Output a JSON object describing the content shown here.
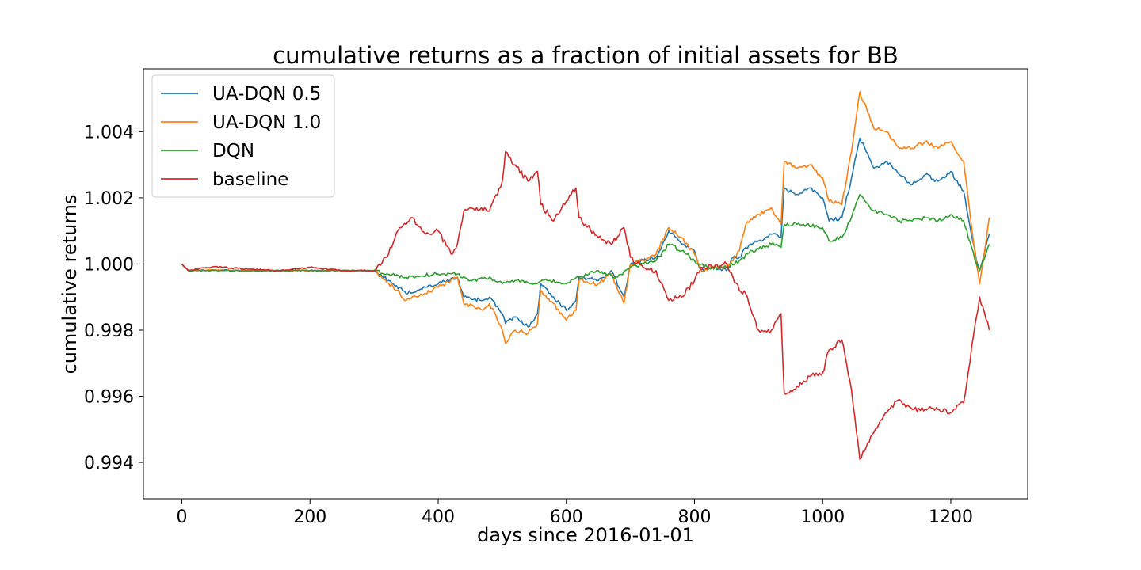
{
  "chart_data": {
    "type": "line",
    "title": "cumulative returns as a fraction of initial assets for BB",
    "xlabel": "days since 2016-01-01",
    "ylabel": "cumulative returns",
    "xlim": [
      -60,
      1320
    ],
    "ylim": [
      0.9929,
      1.0059
    ],
    "xticks": [
      0,
      200,
      400,
      600,
      800,
      1000,
      1200
    ],
    "yticks": [
      0.994,
      0.996,
      0.998,
      1.0,
      1.002,
      1.004
    ],
    "ytick_labels": [
      "0.994",
      "0.996",
      "0.998",
      "1.000",
      "1.002",
      "1.004"
    ],
    "grid": false,
    "legend_position": "upper-left",
    "series": [
      {
        "name": "UA-DQN 0.5",
        "color": "#1f77b4",
        "points": [
          [
            0,
            1.0
          ],
          [
            10,
            0.9998
          ],
          [
            50,
            0.99982
          ],
          [
            100,
            0.9998
          ],
          [
            200,
            0.9998
          ],
          [
            300,
            0.9998
          ],
          [
            330,
            0.9994
          ],
          [
            350,
            0.9991
          ],
          [
            380,
            0.9993
          ],
          [
            400,
            0.9994
          ],
          [
            430,
            0.9996
          ],
          [
            440,
            0.999
          ],
          [
            470,
            0.9989
          ],
          [
            480,
            0.999
          ],
          [
            500,
            0.9985
          ],
          [
            505,
            0.9982
          ],
          [
            520,
            0.9984
          ],
          [
            540,
            0.9981
          ],
          [
            555,
            0.9985
          ],
          [
            560,
            0.9994
          ],
          [
            580,
            0.999
          ],
          [
            600,
            0.9986
          ],
          [
            615,
            0.9989
          ],
          [
            620,
            0.9996
          ],
          [
            650,
            0.9995
          ],
          [
            670,
            0.9998
          ],
          [
            690,
            0.999
          ],
          [
            700,
            1.0
          ],
          [
            720,
            1.0001
          ],
          [
            740,
            1.0002
          ],
          [
            760,
            1.001
          ],
          [
            780,
            1.0006
          ],
          [
            800,
            1.0004
          ],
          [
            810,
            0.9998
          ],
          [
            830,
            0.9999
          ],
          [
            850,
            0.9998
          ],
          [
            860,
            1.0002
          ],
          [
            870,
            1.0002
          ],
          [
            880,
            1.0005
          ],
          [
            900,
            1.0007
          ],
          [
            920,
            1.0009
          ],
          [
            935,
            1.0008
          ],
          [
            940,
            1.0023
          ],
          [
            960,
            1.0021
          ],
          [
            980,
            1.0023
          ],
          [
            1000,
            1.002
          ],
          [
            1010,
            1.0013
          ],
          [
            1030,
            1.0014
          ],
          [
            1045,
            1.0026
          ],
          [
            1058,
            1.0038
          ],
          [
            1080,
            1.0029
          ],
          [
            1100,
            1.0031
          ],
          [
            1120,
            1.0027
          ],
          [
            1140,
            1.0024
          ],
          [
            1160,
            1.0027
          ],
          [
            1180,
            1.0025
          ],
          [
            1200,
            1.0028
          ],
          [
            1220,
            1.0022
          ],
          [
            1240,
            1.0001
          ],
          [
            1245,
            0.9998
          ],
          [
            1260,
            1.0009
          ]
        ]
      },
      {
        "name": "UA-DQN 1.0",
        "color": "#ff7f0e",
        "points": [
          [
            0,
            1.0
          ],
          [
            10,
            0.9998
          ],
          [
            50,
            0.99982
          ],
          [
            100,
            0.9998
          ],
          [
            200,
            0.9998
          ],
          [
            300,
            0.9998
          ],
          [
            330,
            0.9993
          ],
          [
            350,
            0.9989
          ],
          [
            380,
            0.9991
          ],
          [
            400,
            0.9993
          ],
          [
            430,
            0.9996
          ],
          [
            440,
            0.9988
          ],
          [
            470,
            0.9986
          ],
          [
            480,
            0.9988
          ],
          [
            500,
            0.998
          ],
          [
            505,
            0.9976
          ],
          [
            520,
            0.998
          ],
          [
            540,
            0.9979
          ],
          [
            555,
            0.9982
          ],
          [
            560,
            0.9992
          ],
          [
            580,
            0.9988
          ],
          [
            600,
            0.9983
          ],
          [
            615,
            0.9986
          ],
          [
            620,
            0.9995
          ],
          [
            650,
            0.9994
          ],
          [
            670,
            0.9997
          ],
          [
            690,
            0.9988
          ],
          [
            700,
            1.0
          ],
          [
            720,
            1.0001
          ],
          [
            740,
            1.0003
          ],
          [
            760,
            1.0011
          ],
          [
            780,
            1.0008
          ],
          [
            800,
            1.0003
          ],
          [
            810,
            0.9998
          ],
          [
            830,
            0.9999
          ],
          [
            850,
            0.9999
          ],
          [
            860,
            1.0001
          ],
          [
            870,
            1.0004
          ],
          [
            880,
            1.0012
          ],
          [
            900,
            1.0015
          ],
          [
            920,
            1.0017
          ],
          [
            935,
            1.0012
          ],
          [
            940,
            1.0031
          ],
          [
            960,
            1.0029
          ],
          [
            980,
            1.003
          ],
          [
            1000,
            1.0026
          ],
          [
            1010,
            1.0019
          ],
          [
            1030,
            1.0018
          ],
          [
            1045,
            1.0034
          ],
          [
            1058,
            1.0052
          ],
          [
            1080,
            1.0041
          ],
          [
            1100,
            1.004
          ],
          [
            1120,
            1.0035
          ],
          [
            1140,
            1.0035
          ],
          [
            1160,
            1.0037
          ],
          [
            1180,
            1.0035
          ],
          [
            1200,
            1.0037
          ],
          [
            1220,
            1.0031
          ],
          [
            1240,
            1.0
          ],
          [
            1245,
            0.9994
          ],
          [
            1260,
            1.0014
          ]
        ]
      },
      {
        "name": "DQN",
        "color": "#2ca02c",
        "points": [
          [
            0,
            1.0
          ],
          [
            10,
            0.9998
          ],
          [
            100,
            0.9998
          ],
          [
            200,
            0.9998
          ],
          [
            300,
            0.9998
          ],
          [
            320,
            0.9997
          ],
          [
            350,
            0.9996
          ],
          [
            400,
            0.9997
          ],
          [
            430,
            0.9997
          ],
          [
            450,
            0.9995
          ],
          [
            480,
            0.9996
          ],
          [
            500,
            0.9994
          ],
          [
            520,
            0.9995
          ],
          [
            550,
            0.9994
          ],
          [
            570,
            0.9995
          ],
          [
            600,
            0.9994
          ],
          [
            620,
            0.9996
          ],
          [
            650,
            0.9998
          ],
          [
            680,
            0.9996
          ],
          [
            700,
            0.9999
          ],
          [
            720,
            1.0
          ],
          [
            740,
            1.0001
          ],
          [
            760,
            1.0006
          ],
          [
            780,
            1.0004
          ],
          [
            800,
            1.0001
          ],
          [
            820,
            0.9999
          ],
          [
            850,
            0.9999
          ],
          [
            870,
            1.0001
          ],
          [
            890,
            1.0004
          ],
          [
            920,
            1.0006
          ],
          [
            935,
            1.0005
          ],
          [
            940,
            1.0012
          ],
          [
            970,
            1.0012
          ],
          [
            1000,
            1.0011
          ],
          [
            1010,
            1.0007
          ],
          [
            1030,
            1.0008
          ],
          [
            1045,
            1.0014
          ],
          [
            1058,
            1.0021
          ],
          [
            1080,
            1.0016
          ],
          [
            1100,
            1.0015
          ],
          [
            1120,
            1.0013
          ],
          [
            1140,
            1.0013
          ],
          [
            1160,
            1.0014
          ],
          [
            1180,
            1.0013
          ],
          [
            1200,
            1.0015
          ],
          [
            1220,
            1.0013
          ],
          [
            1240,
            1.0
          ],
          [
            1245,
            0.9998
          ],
          [
            1260,
            1.0006
          ]
        ]
      },
      {
        "name": "baseline",
        "color": "#d62728",
        "points": [
          [
            0,
            1.0
          ],
          [
            10,
            0.9998
          ],
          [
            50,
            0.99992
          ],
          [
            100,
            0.99985
          ],
          [
            150,
            0.9998
          ],
          [
            200,
            0.9999
          ],
          [
            250,
            0.9998
          ],
          [
            300,
            0.9998
          ],
          [
            320,
            1.0002
          ],
          [
            340,
            1.0011
          ],
          [
            360,
            1.0014
          ],
          [
            380,
            1.0009
          ],
          [
            400,
            1.001
          ],
          [
            420,
            1.0003
          ],
          [
            430,
            1.0006
          ],
          [
            440,
            1.0016
          ],
          [
            460,
            1.0017
          ],
          [
            480,
            1.0016
          ],
          [
            500,
            1.0025
          ],
          [
            505,
            1.0034
          ],
          [
            520,
            1.003
          ],
          [
            540,
            1.0025
          ],
          [
            555,
            1.0028
          ],
          [
            560,
            1.0018
          ],
          [
            580,
            1.0013
          ],
          [
            600,
            1.0019
          ],
          [
            615,
            1.0023
          ],
          [
            620,
            1.0014
          ],
          [
            650,
            1.0008
          ],
          [
            670,
            1.0006
          ],
          [
            690,
            1.0011
          ],
          [
            700,
            1.0002
          ],
          [
            720,
            0.9999
          ],
          [
            740,
            0.9998
          ],
          [
            760,
            0.9989
          ],
          [
            780,
            0.999
          ],
          [
            800,
            0.9995
          ],
          [
            810,
            0.9999
          ],
          [
            830,
            0.9999
          ],
          [
            850,
            1.0
          ],
          [
            860,
            0.9996
          ],
          [
            870,
            0.9992
          ],
          [
            880,
            0.9991
          ],
          [
            900,
            0.998
          ],
          [
            920,
            0.998
          ],
          [
            935,
            0.9985
          ],
          [
            940,
            0.9961
          ],
          [
            960,
            0.9963
          ],
          [
            980,
            0.9966
          ],
          [
            1000,
            0.9967
          ],
          [
            1010,
            0.9974
          ],
          [
            1030,
            0.9977
          ],
          [
            1045,
            0.9962
          ],
          [
            1058,
            0.9941
          ],
          [
            1080,
            0.9949
          ],
          [
            1100,
            0.9955
          ],
          [
            1120,
            0.9959
          ],
          [
            1140,
            0.9956
          ],
          [
            1160,
            0.9956
          ],
          [
            1180,
            0.9956
          ],
          [
            1200,
            0.9955
          ],
          [
            1220,
            0.9958
          ],
          [
            1240,
            0.9984
          ],
          [
            1245,
            0.999
          ],
          [
            1260,
            0.998
          ]
        ]
      }
    ]
  }
}
